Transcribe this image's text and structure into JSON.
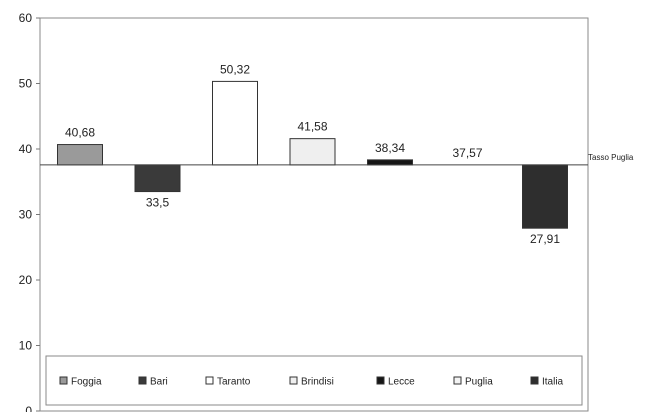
{
  "chart_data": {
    "type": "bar",
    "categories": [
      "Foggia",
      "Bari",
      "Taranto",
      "Brindisi",
      "Lecce",
      "Puglia",
      "Italia"
    ],
    "values": [
      40.68,
      33.5,
      50.32,
      41.58,
      38.34,
      37.57,
      27.91
    ],
    "value_labels": [
      "40,68",
      "33,5",
      "50,32",
      "41,58",
      "38,34",
      "37,57",
      "27,91"
    ],
    "colors": [
      "#9a9a9a",
      "#3a3a3a",
      "#ffffff",
      "#efefef",
      "#161616",
      "#f3f3f3",
      "#2e2e2e"
    ],
    "baseline": 37.57,
    "baseline_label": "Tasso Puglia",
    "ylim": [
      0,
      60
    ],
    "yticks": [
      0,
      10,
      20,
      30,
      40,
      50,
      60
    ],
    "title": "",
    "xlabel": "",
    "ylabel": "",
    "legend": {
      "placement": "bottom",
      "entries": [
        "Foggia",
        "Bari",
        "Taranto",
        "Brindisi",
        "Lecce",
        "Puglia",
        "Italia"
      ]
    },
    "grid": false
  }
}
